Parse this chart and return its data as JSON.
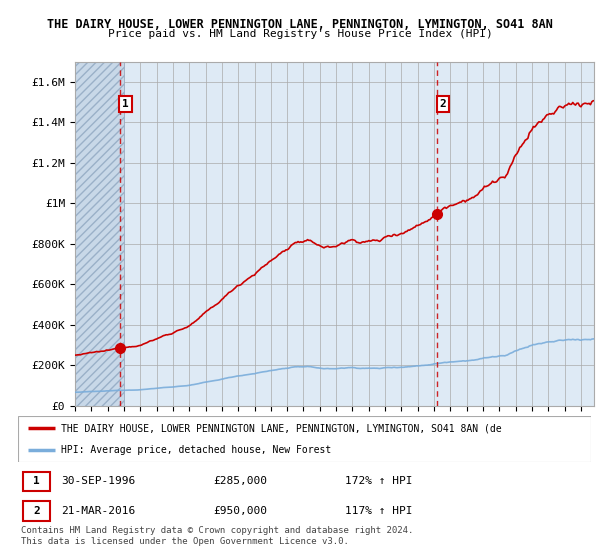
{
  "title1": "THE DAIRY HOUSE, LOWER PENNINGTON LANE, PENNINGTON, LYMINGTON, SO41 8AN",
  "title2": "Price paid vs. HM Land Registry's House Price Index (HPI)",
  "ylabel_ticks": [
    "£0",
    "£200K",
    "£400K",
    "£600K",
    "£800K",
    "£1M",
    "£1.2M",
    "£1.4M",
    "£1.6M"
  ],
  "ylabel_values": [
    0,
    200000,
    400000,
    600000,
    800000,
    1000000,
    1200000,
    1400000,
    1600000
  ],
  "ylim": [
    0,
    1700000
  ],
  "xlim_start": 1994.0,
  "xlim_end": 2025.8,
  "sale1_date_x": 1996.75,
  "sale1_price": 285000,
  "sale2_date_x": 2016.2,
  "sale2_price": 950000,
  "sale1_label": "30-SEP-1996",
  "sale1_price_str": "£285,000",
  "sale1_hpi_str": "172% ↑ HPI",
  "sale2_label": "21-MAR-2016",
  "sale2_price_str": "£950,000",
  "sale2_hpi_str": "117% ↑ HPI",
  "hpi_color": "#7aaddb",
  "price_color": "#cc0000",
  "dashed_color": "#cc0000",
  "legend_label1": "THE DAIRY HOUSE, LOWER PENNINGTON LANE, PENNINGTON, LYMINGTON, SO41 8AN (de",
  "legend_label2": "HPI: Average price, detached house, New Forest",
  "footnote": "Contains HM Land Registry data © Crown copyright and database right 2024.\nThis data is licensed under the Open Government Licence v3.0.",
  "chart_bg": "#deeaf5",
  "hatch_bg": "#c8d8e8",
  "grid_color": "#aaaaaa",
  "hatch_end": 1997.0
}
